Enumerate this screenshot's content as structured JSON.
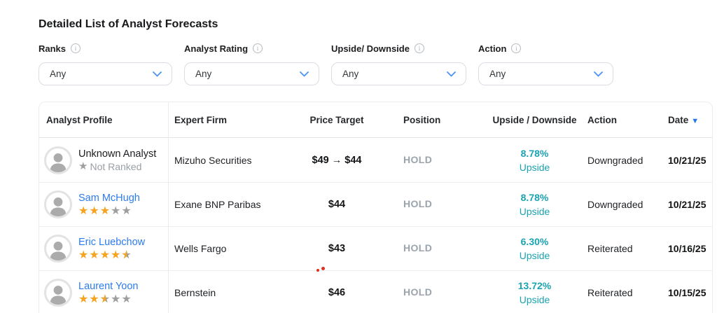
{
  "title": "Detailed List of Analyst Forecasts",
  "icons": {
    "info": "i",
    "sort_desc": "▼",
    "star": "★"
  },
  "colors": {
    "link_blue": "#2b7bf0",
    "teal_positive": "#1aa3b2",
    "star_orange": "#f6a41f",
    "star_gray": "#9e9e9e",
    "hold_gray": "#9ba3ad",
    "sort_blue": "#2276e9"
  },
  "filters": [
    {
      "label": "Ranks",
      "value": "Any"
    },
    {
      "label": "Analyst Rating",
      "value": "Any"
    },
    {
      "label": "Upside/ Downside",
      "value": "Any"
    },
    {
      "label": "Action",
      "value": "Any"
    }
  ],
  "table": {
    "columns": [
      "Analyst Profile",
      "Expert Firm",
      "Price Target",
      "Position",
      "Upside / Downside",
      "Action",
      "Date"
    ],
    "sorted_column": "Date",
    "sort_direction": "descending",
    "rows": [
      {
        "analyst": "Unknown Analyst",
        "rank_label": "Not Ranked",
        "stars": null,
        "firm": "Mizuho Securities",
        "price_target": "$49 → $44",
        "position": "HOLD",
        "change_pct": "8.78%",
        "direction": "Upside",
        "action": "Downgraded",
        "date": "10/21/25"
      },
      {
        "analyst": "Sam McHugh",
        "stars": 3,
        "firm": "Exane BNP Paribas",
        "price_target": "$44",
        "position": "HOLD",
        "change_pct": "8.78%",
        "direction": "Upside",
        "action": "Downgraded",
        "date": "10/21/25"
      },
      {
        "analyst": "Eric Luebchow",
        "stars": 4.5,
        "firm": "Wells Fargo",
        "price_target": "$43",
        "position": "HOLD",
        "change_pct": "6.30%",
        "direction": "Upside",
        "action": "Reiterated",
        "date": "10/16/25"
      },
      {
        "analyst": "Laurent Yoon",
        "stars": 2.5,
        "firm": "Bernstein",
        "price_target": "$46",
        "position": "HOLD",
        "change_pct": "13.72%",
        "direction": "Upside",
        "action": "Reiterated",
        "date": "10/15/25"
      }
    ]
  }
}
